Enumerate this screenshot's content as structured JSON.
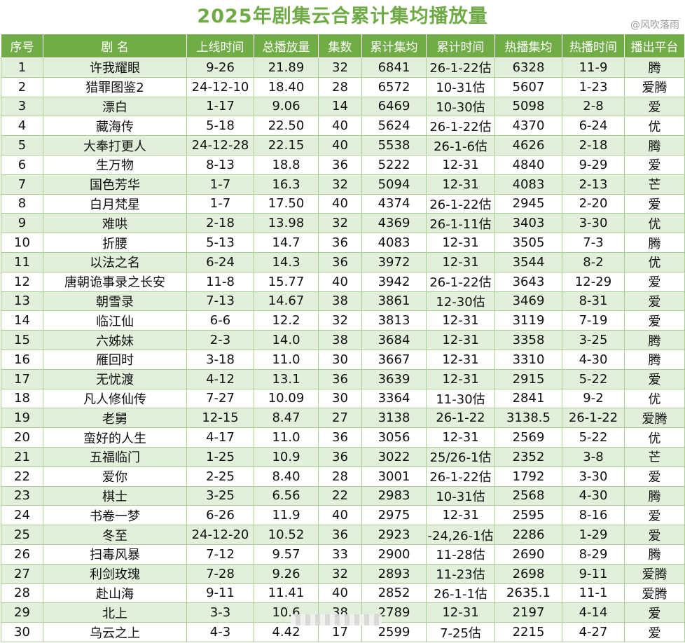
{
  "title": "2025年剧集云合累计集均播放量",
  "watermark": "@风吹落雨",
  "headers": [
    "序号",
    "剧 名",
    "上线时间",
    "总播放量",
    "集数",
    "累计集均",
    "累计时间",
    "热播集均",
    "热播时间",
    "播出平台"
  ],
  "rows": [
    [
      "1",
      "许我耀眼",
      "9-26",
      "21.89",
      "32",
      "6841",
      "26-1-22估",
      "6328",
      "11-9",
      "腾"
    ],
    [
      "2",
      "猎罪图鉴2",
      "24-12-10",
      "18.40",
      "28",
      "6572",
      "10-31估",
      "5607",
      "1-23",
      "爱腾"
    ],
    [
      "3",
      "漂白",
      "1-17",
      "9.06",
      "14",
      "6469",
      "10-30估",
      "5098",
      "2-8",
      "爱"
    ],
    [
      "4",
      "藏海传",
      "5-18",
      "22.50",
      "40",
      "5624",
      "26-1-22估",
      "4370",
      "6-24",
      "优"
    ],
    [
      "5",
      "大奉打更人",
      "24-12-28",
      "22.15",
      "40",
      "5538",
      "26-1-6估",
      "4626",
      "2-18",
      "腾"
    ],
    [
      "6",
      "生万物",
      "8-13",
      "18.8",
      "36",
      "5222",
      "12-31",
      "4840",
      "9-29",
      "爱"
    ],
    [
      "7",
      "国色芳华",
      "1-7",
      "16.3",
      "32",
      "5094",
      "12-31",
      "4083",
      "2-13",
      "芒"
    ],
    [
      "8",
      "白月梵星",
      "1-7",
      "17.50",
      "40",
      "4374",
      "26-1-22估",
      "2945",
      "2-20",
      "爱"
    ],
    [
      "9",
      "难哄",
      "2-18",
      "13.98",
      "32",
      "4369",
      "26-1-11估",
      "3403",
      "3-30",
      "优"
    ],
    [
      "10",
      "折腰",
      "5-13",
      "14.7",
      "36",
      "4083",
      "12-31",
      "3505",
      "7-3",
      "腾"
    ],
    [
      "11",
      "以法之名",
      "6-24",
      "14.3",
      "36",
      "3972",
      "12-31",
      "3544",
      "8-2",
      "优"
    ],
    [
      "12",
      "唐朝诡事录之长安",
      "11-8",
      "15.77",
      "40",
      "3942",
      "26-1-22估",
      "3643",
      "12-29",
      "爱"
    ],
    [
      "13",
      "朝雪录",
      "7-13",
      "14.67",
      "38",
      "3861",
      "12-30估",
      "3469",
      "8-31",
      "爱"
    ],
    [
      "14",
      "临江仙",
      "6-6",
      "12.2",
      "32",
      "3813",
      "12-31",
      "3119",
      "7-19",
      "爱"
    ],
    [
      "15",
      "六姊妹",
      "2-3",
      "14.0",
      "38",
      "3684",
      "12-31",
      "3358",
      "3-25",
      "腾"
    ],
    [
      "16",
      "雁回时",
      "3-18",
      "11.0",
      "30",
      "3667",
      "12-31",
      "3310",
      "4-30",
      "腾"
    ],
    [
      "17",
      "无忧渡",
      "4-12",
      "13.1",
      "36",
      "3639",
      "12-31",
      "2915",
      "5-22",
      "爱"
    ],
    [
      "18",
      "凡人修仙传",
      "7-27",
      "10.09",
      "30",
      "3364",
      "11-30估",
      "2841",
      "9-2",
      "优"
    ],
    [
      "19",
      "老舅",
      "12-15",
      "8.47",
      "27",
      "3138",
      "26-1-22",
      "3138.5",
      "26-1-22",
      "爱腾"
    ],
    [
      "20",
      "蛮好的人生",
      "4-17",
      "11.0",
      "36",
      "3056",
      "12-31",
      "2569",
      "5-22",
      "优"
    ],
    [
      "21",
      "五福临门",
      "1-25",
      "10.9",
      "36",
      "3022",
      "25/26-1估",
      "2352",
      "3-8",
      "芒"
    ],
    [
      "22",
      "爱你",
      "2-25",
      "8.40",
      "28",
      "3001",
      "26-1-22估",
      "1792",
      "3-30",
      "爱"
    ],
    [
      "23",
      "棋士",
      "3-25",
      "6.56",
      "22",
      "2983",
      "10-31估",
      "2568",
      "4-30",
      "腾"
    ],
    [
      "24",
      "书卷一梦",
      "6-26",
      "11.9",
      "40",
      "2975",
      "12-31",
      "2595",
      "8-16",
      "爱"
    ],
    [
      "25",
      "冬至",
      "24-12-20",
      "10.52",
      "36",
      "2923",
      "-24,26-1估",
      "2286",
      "1-29",
      "爱"
    ],
    [
      "26",
      "扫毒风暴",
      "7-12",
      "9.57",
      "33",
      "2900",
      "11-28估",
      "2690",
      "8-29",
      "腾"
    ],
    [
      "27",
      "利剑玫瑰",
      "7-28",
      "9.26",
      "32",
      "2893",
      "11-23估",
      "2698",
      "9-11",
      "爱腾"
    ],
    [
      "28",
      "赴山海",
      "9-11",
      "11.41",
      "40",
      "2852",
      "26-1-1估",
      "2635.1",
      "11-1",
      "爱腾"
    ],
    [
      "29",
      "北上",
      "3-3",
      "10.6",
      "38",
      "2789",
      "12-31",
      "2197",
      "4-14",
      "爱"
    ],
    [
      "30",
      "乌云之上",
      "4-3",
      "4.42",
      "17",
      "2599",
      "7-25估",
      "2215",
      "4-27",
      "爱"
    ]
  ]
}
